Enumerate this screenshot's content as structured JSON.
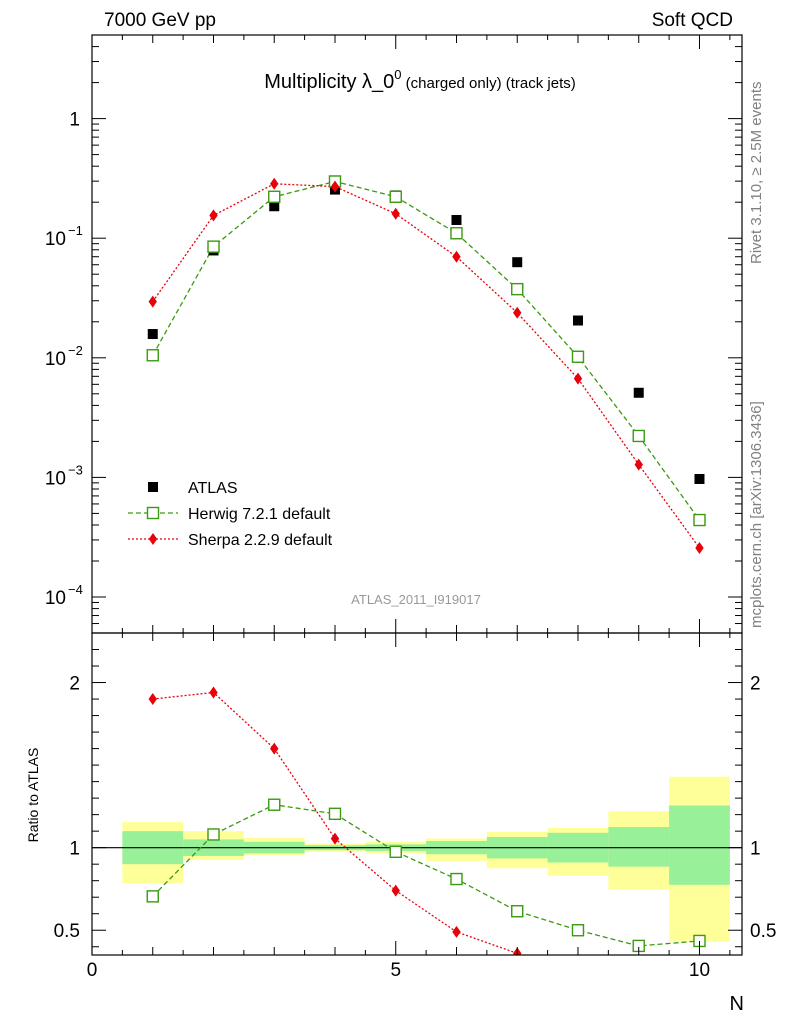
{
  "header": {
    "left": "7000 GeV pp",
    "right": "Soft QCD"
  },
  "side_labels": {
    "rivet": "Rivet 3.1.10, ≥ 2.5M events",
    "mcplots": "mcplots.cern.ch [arXiv:1306.3436]"
  },
  "chart_data": {
    "type": "scatter",
    "title": {
      "main": "Multiplicity λ_0",
      "sup": "0",
      "suffix": " (charged only) (track jets)"
    },
    "analysis_id": "ATLAS_2011_I919017",
    "xlabel": "N",
    "ratio_ylabel": "Ratio to ATLAS",
    "xlim": [
      0,
      10.7
    ],
    "main_ylim": [
      5e-05,
      5
    ],
    "main_yscale": "log",
    "ratio_ylim": [
      0.35,
      2.3
    ],
    "x_ticks": [
      {
        "value": 0,
        "label": "0"
      },
      {
        "value": 5,
        "label": "5"
      },
      {
        "value": 10,
        "label": "10"
      }
    ],
    "main_y_ticks": [
      {
        "value": 1,
        "base": "1",
        "exp": ""
      },
      {
        "value": 0.1,
        "base": "10",
        "exp": "−1"
      },
      {
        "value": 0.01,
        "base": "10",
        "exp": "−2"
      },
      {
        "value": 0.001,
        "base": "10",
        "exp": "−3"
      },
      {
        "value": 0.0001,
        "base": "10",
        "exp": "−4"
      }
    ],
    "ratio_y_ticks": [
      {
        "value": 0.5,
        "label": "0.5"
      },
      {
        "value": 1,
        "label": "1"
      },
      {
        "value": 2,
        "label": "2"
      }
    ],
    "legend_position": "bottom-left",
    "x": [
      1,
      2,
      3,
      4,
      5,
      6,
      7,
      8,
      9,
      10
    ],
    "series": [
      {
        "name": "ATLAS",
        "marker": "filled-square",
        "color": "#000000",
        "values": [
          0.0158,
          0.079,
          0.185,
          0.255,
          0.228,
          0.142,
          0.063,
          0.0205,
          0.0051,
          0.00097
        ]
      },
      {
        "name": "Herwig 7.2.1 default",
        "marker": "open-square",
        "line": "dashed",
        "color": "#3a9a10",
        "values": [
          0.0105,
          0.085,
          0.222,
          0.298,
          0.222,
          0.11,
          0.0375,
          0.0102,
          0.00222,
          0.00044
        ]
      },
      {
        "name": "Sherpa 2.2.9 default",
        "marker": "filled-diamond",
        "line": "dotted",
        "color": "#e8000a",
        "values": [
          0.0295,
          0.155,
          0.285,
          0.27,
          0.16,
          0.07,
          0.0238,
          0.0067,
          0.00128,
          0.000257
        ]
      }
    ],
    "ratio": {
      "band_edges": [
        0.5,
        1.5,
        2.5,
        3.5,
        4.5,
        5.5,
        6.5,
        7.5,
        8.5,
        9.5,
        10.5
      ],
      "inner_band": {
        "color": "#98f098",
        "low": [
          0.9,
          0.95,
          0.965,
          0.985,
          0.98,
          0.96,
          0.935,
          0.91,
          0.885,
          0.775
        ],
        "high": [
          1.1,
          1.05,
          1.035,
          1.015,
          1.02,
          1.04,
          1.065,
          1.09,
          1.125,
          1.255
        ]
      },
      "outer_band": {
        "color": "#ffff99",
        "low": [
          0.785,
          0.925,
          0.955,
          0.975,
          0.965,
          0.92,
          0.875,
          0.83,
          0.745,
          0.43
        ],
        "high": [
          1.155,
          1.1,
          1.06,
          1.025,
          1.035,
          1.055,
          1.095,
          1.12,
          1.22,
          1.43
        ]
      },
      "herwig": [
        0.705,
        1.08,
        1.26,
        1.205,
        0.975,
        0.81,
        0.615,
        0.5,
        0.405,
        0.435
      ],
      "sherpa": [
        1.9,
        1.94,
        1.6,
        1.055,
        0.74,
        0.49,
        0.36
      ]
    }
  }
}
